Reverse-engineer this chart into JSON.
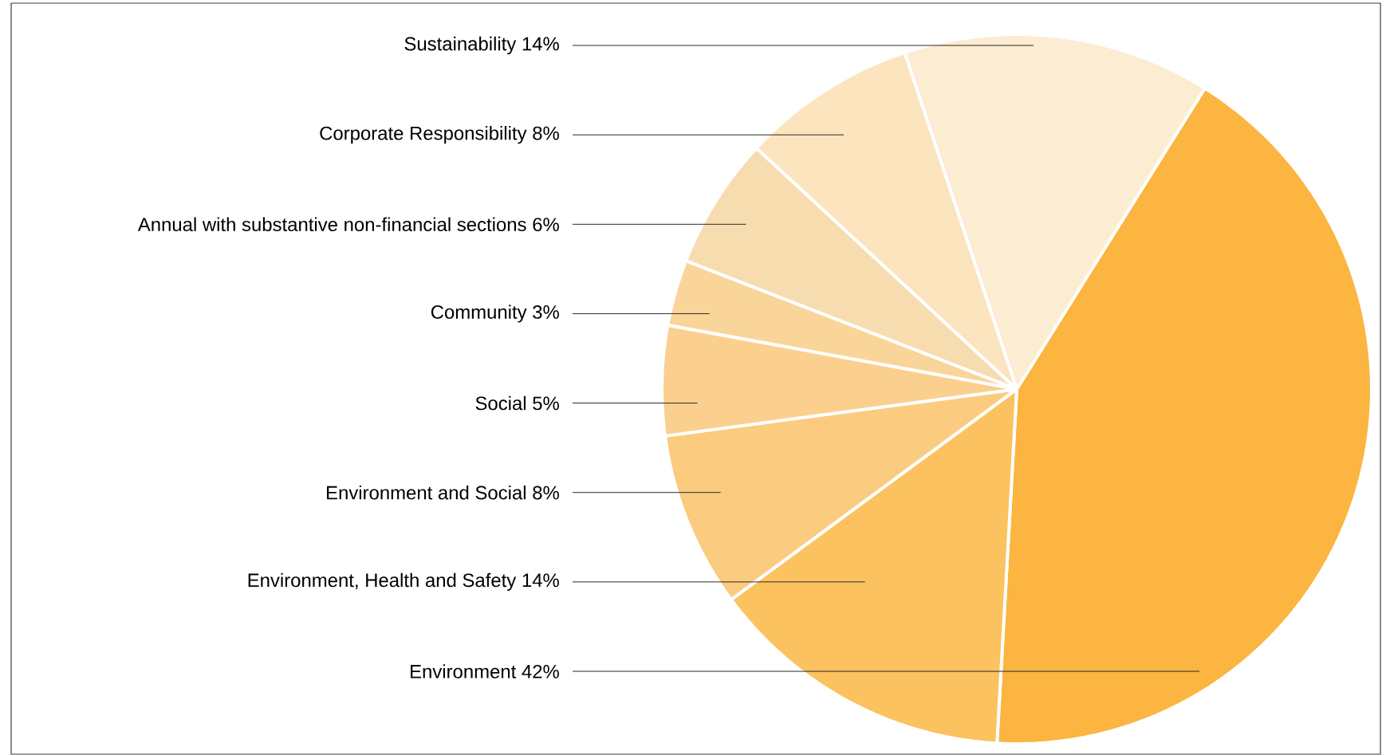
{
  "chart_data": {
    "type": "pie",
    "categories": [
      "Environment",
      "Environment, Health and Safety",
      "Environment and Social",
      "Social",
      "Community",
      "Annual with substantive non-financial sections",
      "Corporate Responsibility",
      "Sustainability"
    ],
    "values": [
      42,
      14,
      8,
      5,
      3,
      6,
      8,
      14
    ],
    "value_labels": [
      "42%",
      "14%",
      "8%",
      "5%",
      "3%",
      "6%",
      "8%",
      "14%"
    ],
    "colors": [
      "#fbb540",
      "#fbc25f",
      "#fbcb7f",
      "#fbd08e",
      "#f9d59a",
      "#f7dcb0",
      "#fbe4be",
      "#fcecd2"
    ]
  }
}
